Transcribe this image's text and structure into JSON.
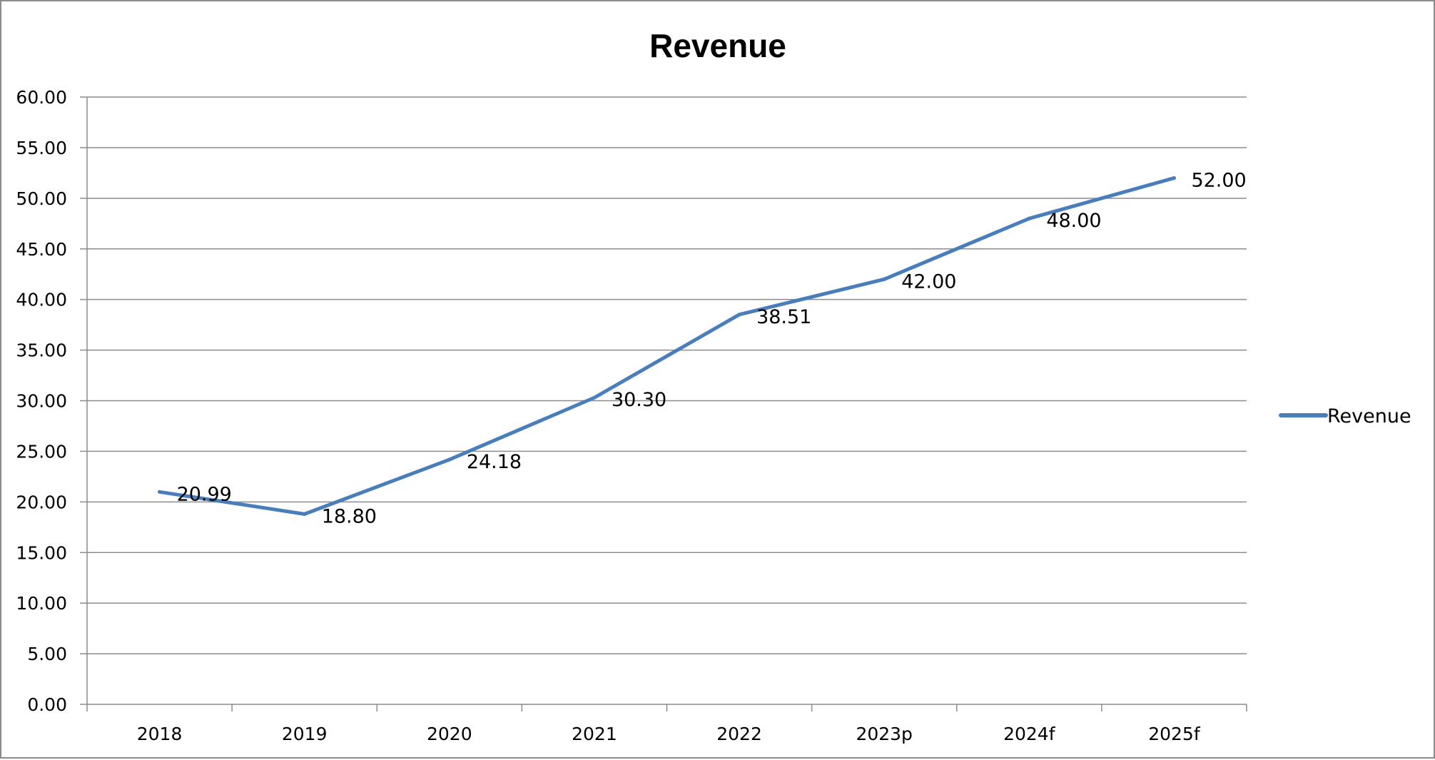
{
  "chart_data": {
    "type": "line",
    "title": "Revenue",
    "xlabel": "",
    "ylabel": "",
    "categories": [
      "2018",
      "2019",
      "2020",
      "2021",
      "2022",
      "2023p",
      "2024f",
      "2025f"
    ],
    "series": [
      {
        "name": "Revenue",
        "values": [
          20.99,
          18.8,
          24.18,
          30.3,
          38.51,
          42.0,
          48.0,
          52.0
        ],
        "data_labels": [
          "20.99",
          "18.80",
          "24.18",
          "30.30",
          "38.51",
          "42.00",
          "48.00",
          "52.00"
        ],
        "color": "#4a7ebb"
      }
    ],
    "ylim": [
      0,
      60
    ],
    "yticks": [
      0,
      5,
      10,
      15,
      20,
      25,
      30,
      35,
      40,
      45,
      50,
      55,
      60
    ],
    "ytick_labels": [
      "0.00",
      "5.00",
      "10.00",
      "15.00",
      "20.00",
      "25.00",
      "30.00",
      "35.00",
      "40.00",
      "45.00",
      "50.00",
      "55.00",
      "60.00"
    ],
    "grid": true,
    "legend": "right"
  }
}
